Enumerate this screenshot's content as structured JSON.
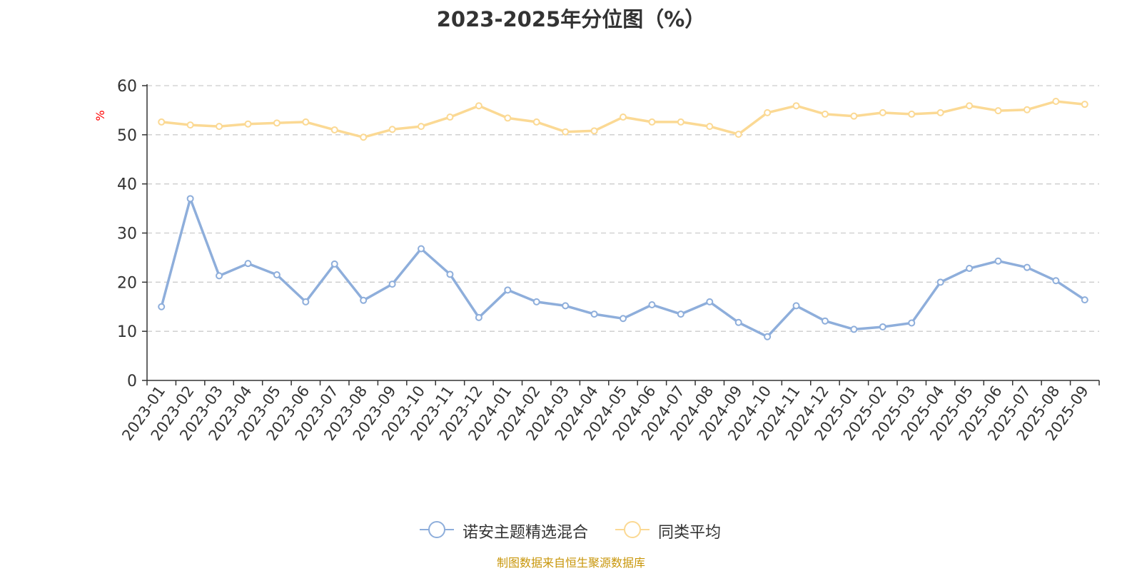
{
  "chart_data": {
    "type": "line",
    "title": "2023-2025年分位图（%）",
    "ylabel": "%",
    "ylim": [
      0,
      60
    ],
    "yticks": [
      0,
      10,
      20,
      30,
      40,
      50,
      60
    ],
    "grid": true,
    "legend_position": "bottom-center",
    "categories": [
      "2023-01",
      "2023-02",
      "2023-03",
      "2023-04",
      "2023-05",
      "2023-06",
      "2023-07",
      "2023-08",
      "2023-09",
      "2023-10",
      "2023-11",
      "2023-12",
      "2024-01",
      "2024-02",
      "2024-03",
      "2024-04",
      "2024-05",
      "2024-06",
      "2024-07",
      "2024-08",
      "2024-09",
      "2024-10",
      "2024-11",
      "2024-12",
      "2025-01",
      "2025-02",
      "2025-03",
      "2025-04",
      "2025-05",
      "2025-06",
      "2025-07",
      "2025-08",
      "2025-09"
    ],
    "series": [
      {
        "name": "诺安主题精选混合",
        "color": "#8eaedb",
        "values": [
          15.0,
          37.0,
          21.3,
          23.8,
          21.5,
          16.0,
          23.7,
          16.3,
          19.6,
          26.8,
          21.6,
          12.8,
          18.4,
          16.0,
          15.2,
          13.5,
          12.6,
          15.4,
          13.5,
          16.0,
          11.8,
          8.9,
          15.2,
          12.1,
          10.4,
          10.9,
          11.7,
          20.0,
          22.8,
          24.3,
          23.0,
          20.3,
          16.4
        ]
      },
      {
        "name": "同类平均",
        "color": "#fbd994",
        "values": [
          52.6,
          52.0,
          51.7,
          52.2,
          52.4,
          52.6,
          51.0,
          49.5,
          51.1,
          51.7,
          53.6,
          55.9,
          53.4,
          52.6,
          50.6,
          50.8,
          53.6,
          52.6,
          52.6,
          51.7,
          50.1,
          54.5,
          55.9,
          54.2,
          53.8,
          54.5,
          54.2,
          54.5,
          55.9,
          54.9,
          55.1,
          56.8,
          56.2
        ]
      }
    ]
  },
  "footer": "制图数据来自恒生聚源数据库"
}
